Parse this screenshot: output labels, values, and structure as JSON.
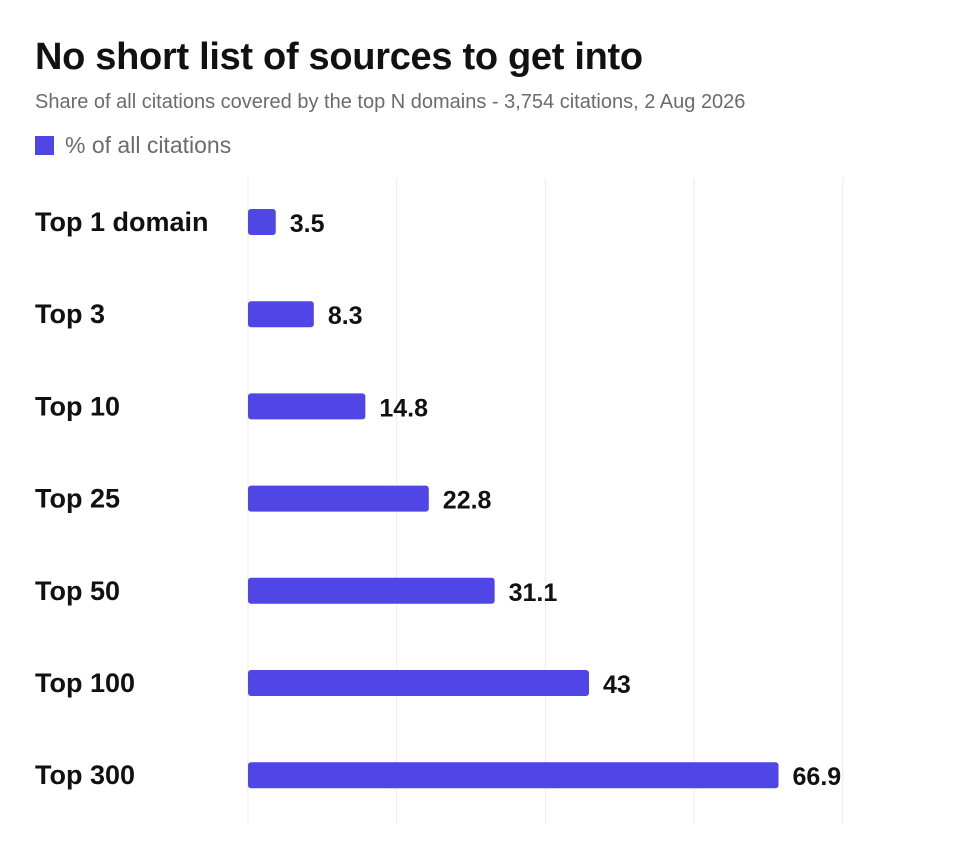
{
  "chart_data": {
    "type": "bar",
    "orientation": "horizontal",
    "title": "No short list of sources to get into",
    "subtitle": "Share of all citations covered by the top N domains - 3,754 citations, 2 Aug 2026",
    "legend": {
      "position": "top-left",
      "entries": [
        "% of all citations"
      ]
    },
    "categories": [
      "Top 1 domain",
      "Top 3",
      "Top 10",
      "Top 25",
      "Top 50",
      "Top 100",
      "Top 300"
    ],
    "series": [
      {
        "name": "% of all citations",
        "values": [
          3.5,
          8.3,
          14.8,
          22.8,
          31.1,
          43,
          66.9
        ],
        "color": "#4f46e5"
      }
    ],
    "xlim": [
      0,
      75
    ],
    "grid": true,
    "xlabel": "",
    "ylabel": ""
  }
}
